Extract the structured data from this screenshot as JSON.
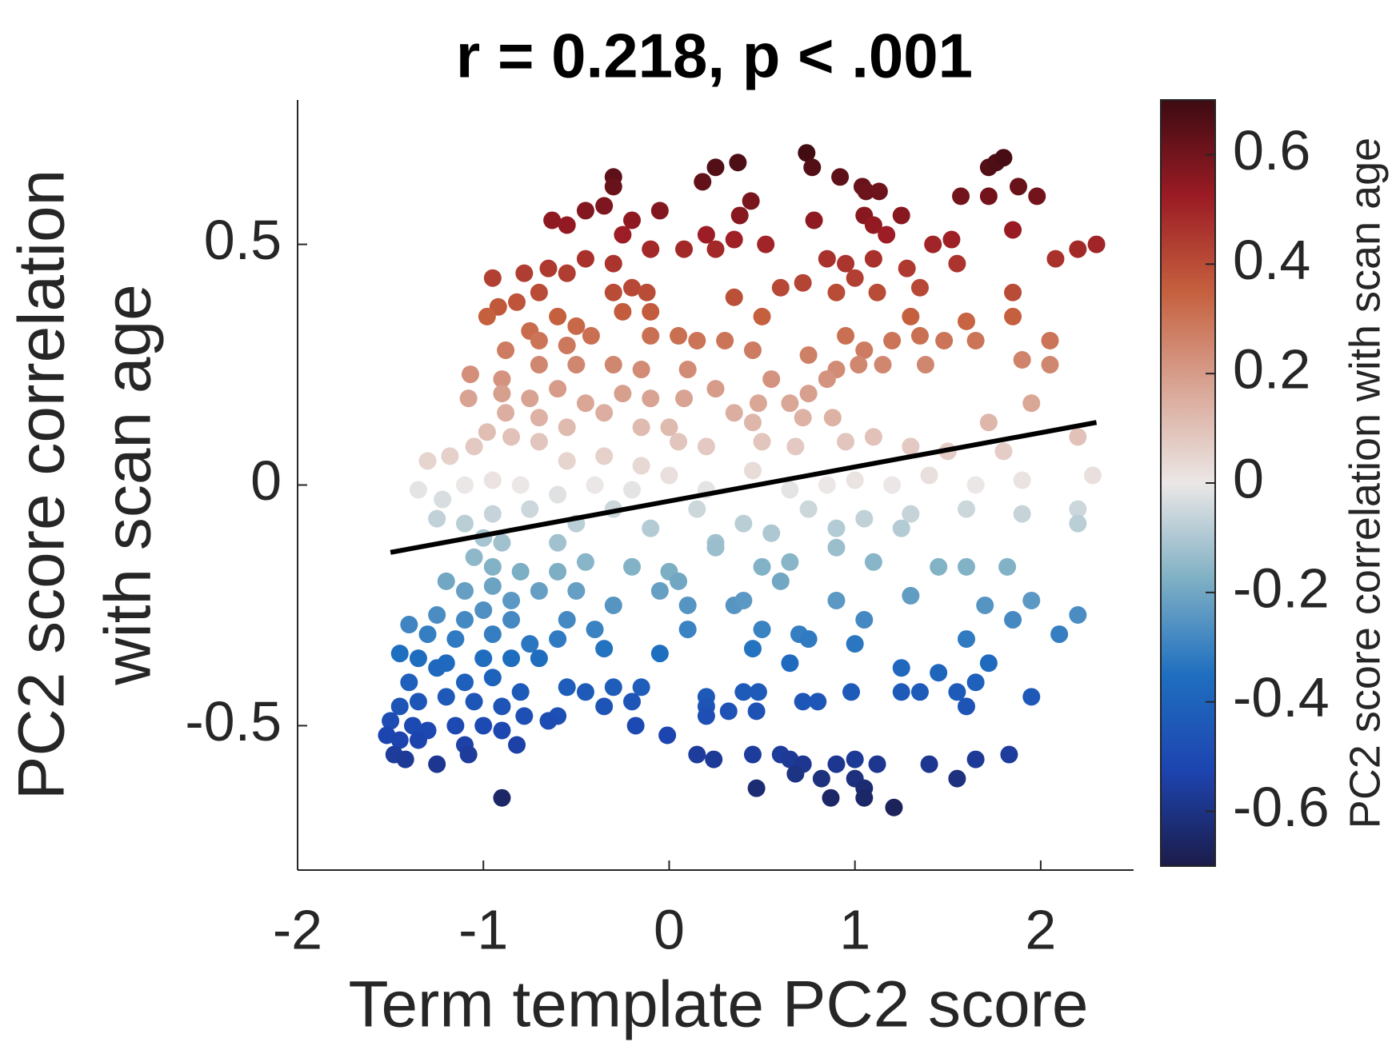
{
  "chart_data": {
    "type": "scatter",
    "title": "r = 0.218, p < .001",
    "xlabel": "Term template PC2 score",
    "ylabel": [
      "PC2 score correlation",
      "with scan age"
    ],
    "colorbar_label": "PC2 score correlation with scan age",
    "xlim": [
      -2,
      2.5
    ],
    "ylim": [
      -0.8,
      0.8
    ],
    "xticks": [
      -2,
      -1,
      0,
      1,
      2
    ],
    "yticks": [
      -0.5,
      0,
      0.5
    ],
    "clim": [
      -0.7,
      0.7
    ],
    "cticks": [
      -0.6,
      -0.4,
      -0.2,
      0,
      0.2,
      0.4,
      0.6
    ],
    "colormap": [
      "#1c1c4a",
      "#1d44b0",
      "#1f6fc0",
      "#7fb0c4",
      "#ebe7e6",
      "#d9a595",
      "#c5603e",
      "#9b1b24",
      "#3d0b12"
    ],
    "grid": false,
    "fit_line": {
      "color": "#000000",
      "x": [
        -1.5,
        2.3
      ],
      "y": [
        -0.14,
        0.13
      ]
    },
    "x": [
      -0.3,
      -0.3,
      0.18,
      0.25,
      0.37,
      0.74,
      0.77,
      0.92,
      1.04,
      1.06,
      1.13,
      1.72,
      1.76,
      1.8,
      1.88,
      1.98,
      1.72,
      1.57,
      0.44,
      -0.63,
      -0.55,
      -0.45,
      -0.35,
      -0.2,
      -0.05,
      -0.25,
      0.2,
      0.38,
      0.52,
      0.78,
      1.05,
      1.1,
      1.17,
      1.25,
      1.85,
      0.08,
      0.25,
      0.35,
      -0.1,
      -0.45,
      -0.3,
      0.85,
      0.95,
      1.1,
      1.28,
      1.42,
      1.52,
      1.55,
      2.08,
      2.2,
      2.3,
      -0.65,
      -0.78,
      -0.55,
      -0.95,
      -0.92,
      -0.82,
      -0.7,
      -0.6,
      -0.3,
      -0.2,
      -0.12,
      0.35,
      0.6,
      0.72,
      0.9,
      1.0,
      1.12,
      1.35,
      1.85,
      -0.98,
      -0.75,
      -0.5,
      -0.25,
      -0.1,
      0.5,
      1.3,
      1.6,
      1.85,
      -0.88,
      -0.7,
      -0.55,
      -0.42,
      -0.1,
      0.05,
      0.15,
      0.3,
      0.45,
      0.95,
      1.05,
      1.2,
      1.35,
      1.48,
      1.65,
      2.05,
      -0.9,
      -0.7,
      -0.5,
      -0.3,
      -0.15,
      0.1,
      0.55,
      0.75,
      0.9,
      1.02,
      1.15,
      1.38,
      1.9,
      2.05,
      -1.07,
      -1.08,
      -0.9,
      -0.75,
      -0.6,
      -0.45,
      -0.25,
      -0.1,
      0.08,
      0.25,
      0.35,
      0.48,
      0.65,
      0.75,
      0.85,
      1.95,
      -0.88,
      -0.7,
      -0.55,
      -0.35,
      -0.15,
      0,
      0.45,
      0.72,
      0.88,
      1.72,
      -1.3,
      -1.18,
      -1.05,
      -0.98,
      -0.85,
      -0.7,
      -0.55,
      -0.35,
      -0.15,
      0.05,
      0.2,
      0.5,
      0.68,
      0.95,
      1.1,
      1.3,
      1.5,
      1.8,
      2.2,
      -1.35,
      -1.22,
      -1.1,
      -0.95,
      -0.8,
      -0.6,
      -0.4,
      -0.2,
      0,
      0.2,
      0.45,
      0.65,
      0.85,
      1,
      1.2,
      1.4,
      1.65,
      1.9,
      2.28,
      -1.25,
      -1.1,
      -0.95,
      -0.75,
      -0.5,
      -0.3,
      -0.1,
      0.15,
      0.4,
      0.75,
      1.05,
      1.3,
      1.6,
      1.9,
      2.2,
      -1,
      -0.9,
      -0.6,
      0.25,
      0.55,
      0.9,
      1.25,
      2.2,
      -1.05,
      -0.95,
      -0.8,
      -0.6,
      -0.45,
      -0.2,
      0,
      0.25,
      0.5,
      0.65,
      0.9,
      1.1,
      1.45,
      1.6,
      1.82,
      -1.2,
      -1.1,
      -0.95,
      -0.85,
      -0.7,
      -0.5,
      -0.05,
      0.05,
      0.35,
      0.6,
      1.3,
      1.95,
      -1.25,
      -1.1,
      -1,
      -0.85,
      -0.55,
      -0.3,
      0.1,
      0.4,
      0.9,
      1.05,
      1.7,
      2.2,
      -1.4,
      -1.3,
      -1.15,
      -0.95,
      -0.75,
      -0.6,
      -0.4,
      0.1,
      0.5,
      0.7,
      0.75,
      1,
      1.6,
      1.85,
      2.1,
      -1.45,
      -1.35,
      -1.2,
      -1,
      -0.85,
      -0.7,
      -0.35,
      -0.05,
      0.45,
      0.65,
      1.25,
      1.45,
      1.72,
      -1.4,
      -1.25,
      -1.1,
      -0.95,
      -0.8,
      -0.55,
      -0.45,
      -0.3,
      -0.15,
      0.2,
      0.4,
      0.48,
      0.72,
      0.98,
      1.35,
      1.55,
      1.65,
      1.95,
      -1.45,
      -1.35,
      -1.2,
      -1.05,
      -0.9,
      -0.78,
      -0.6,
      -0.35,
      -0.2,
      0.2,
      0.32,
      0.47,
      0.8,
      1.25,
      1.6,
      -1.5,
      -1.38,
      -1.3,
      -1.15,
      -1,
      -0.9,
      -0.65,
      -0.18,
      0.2,
      -1.52,
      -1.45,
      -1.35,
      -1.1,
      -0.82,
      -0.01,
      -1.48,
      -1.42,
      -1.25,
      -1.08,
      0.15,
      0.24,
      0.45,
      0.6,
      0.65,
      0.72,
      0.9,
      1,
      1.12,
      1.4,
      1.65,
      1.83,
      0.68,
      1.55,
      1,
      1.05,
      -0.9,
      0.47,
      0.87,
      0.82,
      1.05,
      1.21
    ],
    "values": [
      0.64,
      0.62,
      0.63,
      0.66,
      0.67,
      0.69,
      0.66,
      0.64,
      0.62,
      0.61,
      0.61,
      0.66,
      0.67,
      0.68,
      0.62,
      0.6,
      0.6,
      0.6,
      0.59,
      0.55,
      0.54,
      0.57,
      0.58,
      0.55,
      0.57,
      0.52,
      0.52,
      0.56,
      0.5,
      0.55,
      0.56,
      0.54,
      0.52,
      0.56,
      0.53,
      0.49,
      0.49,
      0.51,
      0.49,
      0.47,
      0.46,
      0.47,
      0.46,
      0.47,
      0.45,
      0.5,
      0.51,
      0.46,
      0.47,
      0.49,
      0.5,
      0.45,
      0.44,
      0.44,
      0.43,
      0.37,
      0.38,
      0.4,
      0.35,
      0.4,
      0.41,
      0.4,
      0.39,
      0.41,
      0.42,
      0.4,
      0.43,
      0.4,
      0.41,
      0.4,
      0.35,
      0.32,
      0.33,
      0.36,
      0.36,
      0.35,
      0.35,
      0.34,
      0.35,
      0.28,
      0.3,
      0.29,
      0.31,
      0.31,
      0.31,
      0.3,
      0.3,
      0.28,
      0.31,
      0.28,
      0.3,
      0.31,
      0.3,
      0.3,
      0.3,
      0.22,
      0.25,
      0.25,
      0.25,
      0.24,
      0.24,
      0.22,
      0.27,
      0.24,
      0.25,
      0.25,
      0.25,
      0.26,
      0.25,
      0.23,
      0.18,
      0.19,
      0.18,
      0.2,
      0.17,
      0.19,
      0.18,
      0.18,
      0.2,
      0.15,
      0.17,
      0.17,
      0.19,
      0.22,
      0.17,
      0.15,
      0.14,
      0.12,
      0.15,
      0.12,
      0.12,
      0.13,
      0.14,
      0.14,
      0.13,
      0.05,
      0.06,
      0.08,
      0.11,
      0.1,
      0.09,
      0.05,
      0.06,
      0.04,
      0.09,
      0.08,
      0.09,
      0.08,
      0.09,
      0.1,
      0.08,
      0.07,
      0.07,
      0.1,
      -0.01,
      -0.03,
      0,
      0.01,
      0,
      -0.02,
      0,
      -0.01,
      0.02,
      -0.01,
      0.03,
      -0.01,
      0,
      0.01,
      0,
      0.02,
      0,
      0.01,
      0.02,
      -0.07,
      -0.08,
      -0.06,
      -0.05,
      -0.08,
      -0.05,
      -0.09,
      -0.05,
      -0.08,
      -0.05,
      -0.07,
      -0.06,
      -0.05,
      -0.06,
      -0.05,
      -0.11,
      -0.12,
      -0.12,
      -0.12,
      -0.1,
      -0.09,
      -0.09,
      -0.08,
      -0.15,
      -0.17,
      -0.18,
      -0.18,
      -0.16,
      -0.17,
      -0.18,
      -0.13,
      -0.17,
      -0.16,
      -0.13,
      -0.16,
      -0.17,
      -0.17,
      -0.17,
      -0.2,
      -0.22,
      -0.21,
      -0.24,
      -0.22,
      -0.22,
      -0.22,
      -0.2,
      -0.25,
      -0.2,
      -0.23,
      -0.24,
      -0.27,
      -0.28,
      -0.26,
      -0.28,
      -0.28,
      -0.25,
      -0.25,
      -0.24,
      -0.24,
      -0.28,
      -0.25,
      -0.27,
      -0.29,
      -0.31,
      -0.32,
      -0.31,
      -0.33,
      -0.32,
      -0.3,
      -0.3,
      -0.3,
      -0.31,
      -0.32,
      -0.33,
      -0.32,
      -0.28,
      -0.31,
      -0.35,
      -0.36,
      -0.37,
      -0.36,
      -0.36,
      -0.36,
      -0.34,
      -0.35,
      -0.34,
      -0.37,
      -0.38,
      -0.39,
      -0.37,
      -0.41,
      -0.38,
      -0.41,
      -0.4,
      -0.43,
      -0.42,
      -0.43,
      -0.42,
      -0.42,
      -0.44,
      -0.43,
      -0.43,
      -0.45,
      -0.43,
      -0.43,
      -0.43,
      -0.41,
      -0.44,
      -0.46,
      -0.45,
      -0.44,
      -0.45,
      -0.46,
      -0.48,
      -0.48,
      -0.46,
      -0.45,
      -0.46,
      -0.47,
      -0.47,
      -0.45,
      -0.43,
      -0.46,
      -0.49,
      -0.5,
      -0.51,
      -0.5,
      -0.5,
      -0.51,
      -0.49,
      -0.5,
      -0.48,
      -0.52,
      -0.53,
      -0.53,
      -0.54,
      -0.54,
      -0.52,
      -0.56,
      -0.57,
      -0.58,
      -0.56,
      -0.56,
      -0.57,
      -0.56,
      -0.56,
      -0.57,
      -0.58,
      -0.58,
      -0.57,
      -0.58,
      -0.58,
      -0.57,
      -0.56,
      -0.6,
      -0.61,
      -0.61,
      -0.63,
      -0.65,
      -0.63,
      -0.65,
      -0.61,
      -0.65,
      -0.67
    ]
  }
}
